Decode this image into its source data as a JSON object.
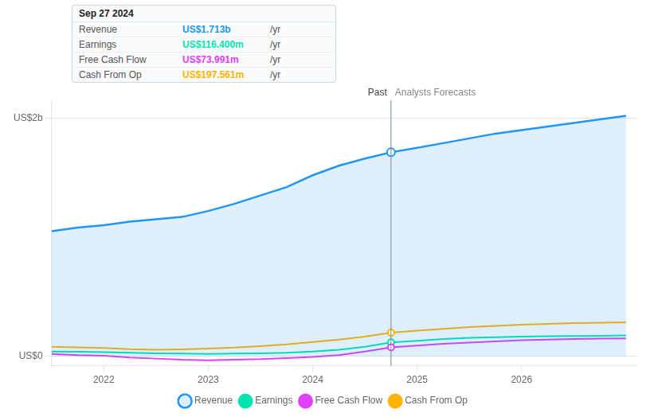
{
  "chart_data": {
    "type": "line",
    "x": [
      2021.5,
      2021.75,
      2022.0,
      2022.25,
      2022.5,
      2022.75,
      2023.0,
      2023.25,
      2023.5,
      2023.75,
      2024.0,
      2024.25,
      2024.5,
      2024.75,
      2025.0,
      2025.25,
      2025.5,
      2025.75,
      2026.0,
      2026.25,
      2026.5,
      2026.75,
      2027.0
    ],
    "series": [
      {
        "name": "Revenue",
        "color": "#2196f3",
        "type": "area",
        "values": [
          1.05,
          1.08,
          1.1,
          1.13,
          1.15,
          1.17,
          1.22,
          1.28,
          1.35,
          1.42,
          1.52,
          1.6,
          1.66,
          1.713,
          1.75,
          1.79,
          1.83,
          1.87,
          1.9,
          1.93,
          1.96,
          1.99,
          2.02
        ]
      },
      {
        "name": "Earnings",
        "color": "#00e5b0",
        "type": "line",
        "values": [
          0.04,
          0.038,
          0.035,
          0.03,
          0.025,
          0.022,
          0.02,
          0.022,
          0.025,
          0.03,
          0.04,
          0.055,
          0.08,
          0.1164,
          0.13,
          0.145,
          0.155,
          0.16,
          0.165,
          0.168,
          0.17,
          0.172,
          0.175
        ]
      },
      {
        "name": "Free Cash Flow",
        "color": "#e040fb",
        "type": "line",
        "values": [
          0.02,
          0.01,
          0.005,
          -0.01,
          -0.02,
          -0.03,
          -0.035,
          -0.03,
          -0.025,
          -0.015,
          -0.005,
          0.01,
          0.04,
          0.07399,
          0.09,
          0.105,
          0.115,
          0.125,
          0.135,
          0.14,
          0.145,
          0.148,
          0.15
        ]
      },
      {
        "name": "Cash From Op",
        "color": "#ffb300",
        "type": "line",
        "values": [
          0.08,
          0.075,
          0.07,
          0.06,
          0.055,
          0.058,
          0.065,
          0.072,
          0.085,
          0.1,
          0.12,
          0.14,
          0.165,
          0.197561,
          0.215,
          0.23,
          0.245,
          0.255,
          0.265,
          0.272,
          0.278,
          0.282,
          0.285
        ]
      }
    ],
    "xlim": [
      2021.5,
      2027.1
    ],
    "xticks": [
      2022,
      2023,
      2024,
      2025,
      2026
    ],
    "ylim": [
      -0.08,
      2.15
    ],
    "yticks": [
      {
        "value": 0,
        "label": "US$0"
      },
      {
        "value": 2.0,
        "label": "US$2b"
      }
    ],
    "grid": "y",
    "legend": "bottom",
    "divider": {
      "x": 2024.75,
      "labels": [
        "Past",
        "Analysts Forecasts"
      ],
      "marker_values": [
        1.713,
        0.1164,
        0.07399,
        0.197561
      ]
    },
    "tooltip": {
      "title": "Sep 27 2024",
      "rows": [
        {
          "label": "Revenue",
          "text": "US$1.713b",
          "unit": "/yr",
          "color": "#2196f3"
        },
        {
          "label": "Earnings",
          "text": "US$116.400m",
          "unit": "/yr",
          "color": "#00e5b0"
        },
        {
          "label": "Free Cash Flow",
          "text": "US$73.991m",
          "unit": "/yr",
          "color": "#e040fb"
        },
        {
          "label": "Cash From Op",
          "text": "US$197.561m",
          "unit": "/yr",
          "color": "#ffb300"
        }
      ]
    }
  }
}
